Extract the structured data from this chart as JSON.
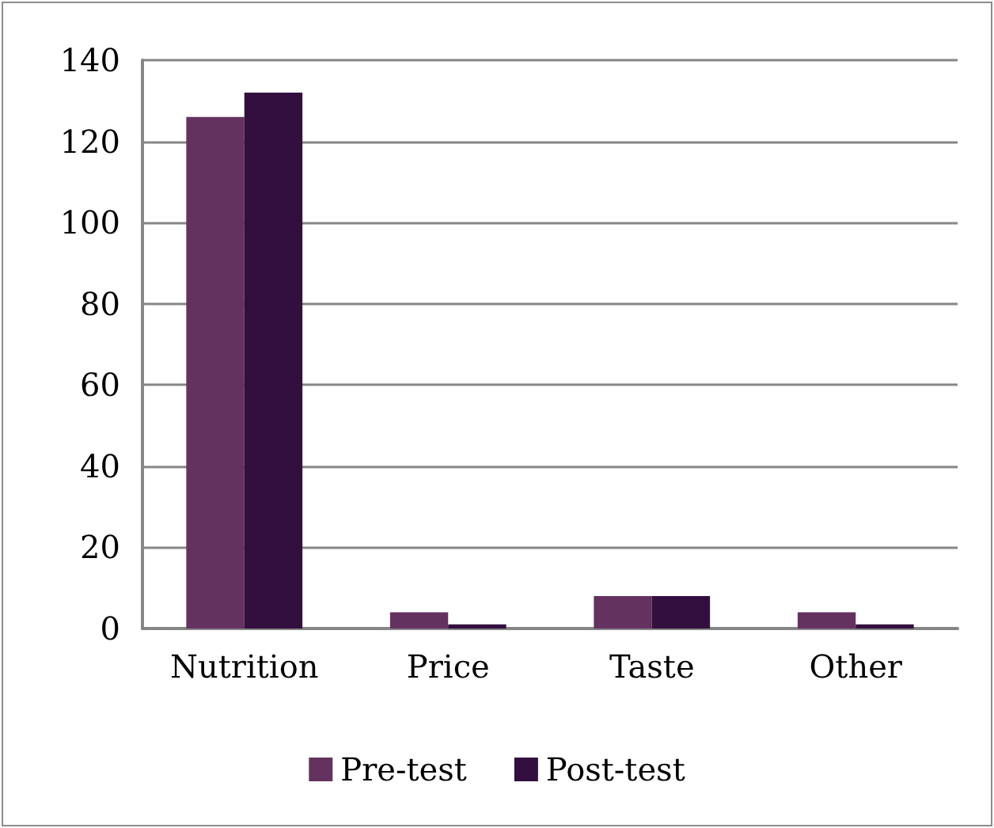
{
  "chart_data": {
    "type": "bar",
    "categories": [
      "Nutrition",
      "Price",
      "Taste",
      "Other"
    ],
    "series": [
      {
        "name": "Pre-test",
        "color": "#64325f",
        "values": [
          126,
          4,
          8,
          4
        ]
      },
      {
        "name": "Post-test",
        "color": "#330f3f",
        "values": [
          132,
          1,
          8,
          1
        ]
      }
    ],
    "ylim": [
      0,
      140
    ],
    "yticks": [
      0,
      20,
      40,
      60,
      80,
      100,
      120,
      140
    ],
    "grid": "y",
    "legend": "bottom"
  }
}
